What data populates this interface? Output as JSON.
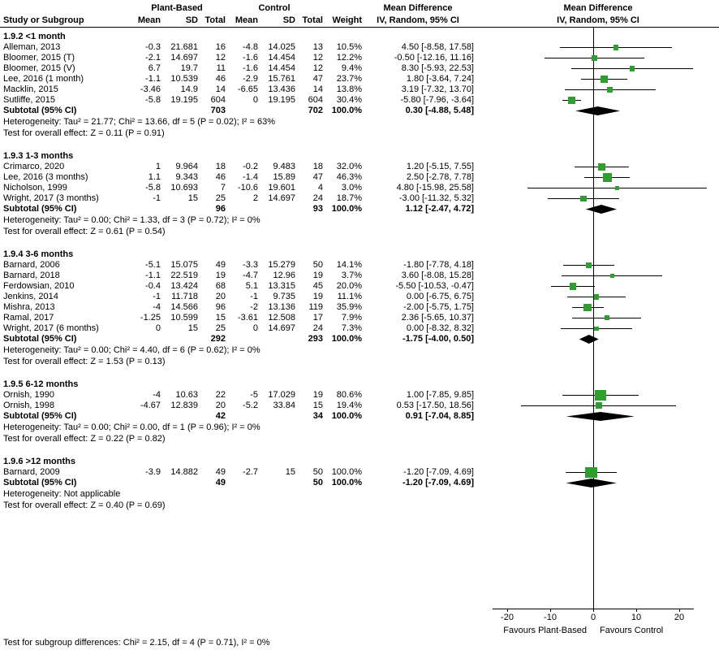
{
  "header": {
    "group_plant": "Plant-Based",
    "group_control": "Control",
    "md_text_col": "Mean Difference",
    "md_plot_col": "Mean Difference",
    "study": "Study or Subgroup",
    "mean": "Mean",
    "sd": "SD",
    "total": "Total",
    "weight": "Weight",
    "ci": "IV, Random, 95% CI",
    "ci_plot": "IV, Random, 95% CI"
  },
  "chart_data": {
    "type": "forest",
    "effect_measure": "Mean Difference, IV, Random, 95% CI",
    "axis": {
      "ticks": [
        -20,
        -10,
        0,
        10,
        20
      ],
      "xlim": [
        -28.5,
        29.2
      ],
      "label_left": "Favours Plant-Based",
      "label_right": "Favours Control"
    },
    "colors": {
      "square": "#2E9E2E",
      "diamond": "#000000",
      "line": "#000000"
    },
    "subgroups": [
      {
        "title": "1.9.2 <1 month",
        "studies": [
          {
            "name": "Alleman, 2013",
            "mean1": "-0.3",
            "sd1": "21.681",
            "n1": "16",
            "mean2": "-4.8",
            "sd2": "14.025",
            "n2": "13",
            "weight": "10.5%",
            "weight_val": 10.5,
            "ci_text": "4.50 [-8.58, 17.58]",
            "md": 4.5,
            "lo": -8.58,
            "hi": 17.58
          },
          {
            "name": "Bloomer, 2015 (T)",
            "mean1": "-2.1",
            "sd1": "14.697",
            "n1": "12",
            "mean2": "-1.6",
            "sd2": "14.454",
            "n2": "12",
            "weight": "12.2%",
            "weight_val": 12.2,
            "ci_text": "-0.50 [-12.16, 11.16]",
            "md": -0.5,
            "lo": -12.16,
            "hi": 11.16
          },
          {
            "name": "Bloomer, 2015 (V)",
            "mean1": "6.7",
            "sd1": "19.7",
            "n1": "11",
            "mean2": "-1.6",
            "sd2": "14.454",
            "n2": "12",
            "weight": "9.4%",
            "weight_val": 9.4,
            "ci_text": "8.30 [-5.93, 22.53]",
            "md": 8.3,
            "lo": -5.93,
            "hi": 22.53
          },
          {
            "name": "Lee, 2016 (1 month)",
            "mean1": "-1.1",
            "sd1": "10.539",
            "n1": "46",
            "mean2": "-2.9",
            "sd2": "15.761",
            "n2": "47",
            "weight": "23.7%",
            "weight_val": 23.7,
            "ci_text": "1.80 [-3.64, 7.24]",
            "md": 1.8,
            "lo": -3.64,
            "hi": 7.24
          },
          {
            "name": "Macklin, 2015",
            "mean1": "-3.46",
            "sd1": "14.9",
            "n1": "14",
            "mean2": "-6.65",
            "sd2": "13.436",
            "n2": "14",
            "weight": "13.8%",
            "weight_val": 13.8,
            "ci_text": "3.19 [-7.32, 13.70]",
            "md": 3.19,
            "lo": -7.32,
            "hi": 13.7
          },
          {
            "name": "Sutliffe, 2015",
            "mean1": "-5.8",
            "sd1": "19.195",
            "n1": "604",
            "mean2": "0",
            "sd2": "19.195",
            "n2": "604",
            "weight": "30.4%",
            "weight_val": 30.4,
            "ci_text": "-5.80 [-7.96, -3.64]",
            "md": -5.8,
            "lo": -7.96,
            "hi": -3.64
          }
        ],
        "subtotal": {
          "label": "Subtotal (95% CI)",
          "n1": "703",
          "n2": "702",
          "weight": "100.0%",
          "ci_text": "0.30 [-4.88, 5.48]",
          "md": 0.3,
          "lo": -4.88,
          "hi": 5.48
        },
        "heterogeneity": "Heterogeneity: Tau² = 21.77; Chi² = 13.66, df = 5 (P = 0.02); I² = 63%",
        "overall_effect": "Test for overall effect: Z = 0.11 (P = 0.91)"
      },
      {
        "title": "1.9.3 1-3 months",
        "studies": [
          {
            "name": "Crimarco, 2020",
            "mean1": "1",
            "sd1": "9.964",
            "n1": "18",
            "mean2": "-0.2",
            "sd2": "9.483",
            "n2": "18",
            "weight": "32.0%",
            "weight_val": 32,
            "ci_text": "1.20 [-5.15, 7.55]",
            "md": 1.2,
            "lo": -5.15,
            "hi": 7.55
          },
          {
            "name": "Lee, 2016 (3 months)",
            "mean1": "1.1",
            "sd1": "9.343",
            "n1": "46",
            "mean2": "-1.4",
            "sd2": "15.89",
            "n2": "47",
            "weight": "46.3%",
            "weight_val": 46.3,
            "ci_text": "2.50 [-2.78, 7.78]",
            "md": 2.5,
            "lo": -2.78,
            "hi": 7.78
          },
          {
            "name": "Nicholson, 1999",
            "mean1": "-5.8",
            "sd1": "10.693",
            "n1": "7",
            "mean2": "-10.6",
            "sd2": "19.601",
            "n2": "4",
            "weight": "3.0%",
            "weight_val": 3,
            "ci_text": "4.80 [-15.98, 25.58]",
            "md": 4.8,
            "lo": -15.98,
            "hi": 25.58
          },
          {
            "name": "Wright, 2017 (3 months)",
            "mean1": "-1",
            "sd1": "15",
            "n1": "25",
            "mean2": "2",
            "sd2": "14.697",
            "n2": "24",
            "weight": "18.7%",
            "weight_val": 18.7,
            "ci_text": "-3.00 [-11.32, 5.32]",
            "md": -3,
            "lo": -11.32,
            "hi": 5.32
          }
        ],
        "subtotal": {
          "label": "Subtotal (95% CI)",
          "n1": "96",
          "n2": "93",
          "weight": "100.0%",
          "ci_text": "1.12 [-2.47, 4.72]",
          "md": 1.12,
          "lo": -2.47,
          "hi": 4.72
        },
        "heterogeneity": "Heterogeneity: Tau² = 0.00; Chi² = 1.33, df = 3 (P = 0.72); I² = 0%",
        "overall_effect": "Test for overall effect: Z = 0.61 (P = 0.54)"
      },
      {
        "title": "1.9.4 3-6 months",
        "studies": [
          {
            "name": "Barnard, 2006",
            "mean1": "-5.1",
            "sd1": "15.075",
            "n1": "49",
            "mean2": "-3.3",
            "sd2": "15.279",
            "n2": "50",
            "weight": "14.1%",
            "weight_val": 14.1,
            "ci_text": "-1.80 [-7.78, 4.18]",
            "md": -1.8,
            "lo": -7.78,
            "hi": 4.18
          },
          {
            "name": "Barnard, 2018",
            "mean1": "-1.1",
            "sd1": "22.519",
            "n1": "19",
            "mean2": "-4.7",
            "sd2": "12.96",
            "n2": "19",
            "weight": "3.7%",
            "weight_val": 3.7,
            "ci_text": "3.60 [-8.08, 15.28]",
            "md": 3.6,
            "lo": -8.08,
            "hi": 15.28
          },
          {
            "name": "Ferdowsian, 2010",
            "mean1": "-0.4",
            "sd1": "13.424",
            "n1": "68",
            "mean2": "5.1",
            "sd2": "13.315",
            "n2": "45",
            "weight": "20.0%",
            "weight_val": 20,
            "ci_text": "-5.50 [-10.53, -0.47]",
            "md": -5.5,
            "lo": -10.53,
            "hi": -0.47
          },
          {
            "name": "Jenkins, 2014",
            "mean1": "-1",
            "sd1": "11.718",
            "n1": "20",
            "mean2": "-1",
            "sd2": "9.735",
            "n2": "19",
            "weight": "11.1%",
            "weight_val": 11.1,
            "ci_text": "0.00 [-6.75, 6.75]",
            "md": 0,
            "lo": -6.75,
            "hi": 6.75
          },
          {
            "name": "Mishra, 2013",
            "mean1": "-4",
            "sd1": "14.566",
            "n1": "96",
            "mean2": "-2",
            "sd2": "13.136",
            "n2": "119",
            "weight": "35.9%",
            "weight_val": 35.9,
            "ci_text": "-2.00 [-5.75, 1.75]",
            "md": -2,
            "lo": -5.75,
            "hi": 1.75
          },
          {
            "name": "Ramal, 2017",
            "mean1": "-1.25",
            "sd1": "10.599",
            "n1": "15",
            "mean2": "-3.61",
            "sd2": "12.508",
            "n2": "17",
            "weight": "7.9%",
            "weight_val": 7.9,
            "ci_text": "2.36 [-5.65, 10.37]",
            "md": 2.36,
            "lo": -5.65,
            "hi": 10.37
          },
          {
            "name": "Wright, 2017 (6 months)",
            "mean1": "0",
            "sd1": "15",
            "n1": "25",
            "mean2": "0",
            "sd2": "14.697",
            "n2": "24",
            "weight": "7.3%",
            "weight_val": 7.3,
            "ci_text": "0.00 [-8.32, 8.32]",
            "md": 0,
            "lo": -8.32,
            "hi": 8.32
          }
        ],
        "subtotal": {
          "label": "Subtotal (95% CI)",
          "n1": "292",
          "n2": "293",
          "weight": "100.0%",
          "ci_text": "-1.75 [-4.00, 0.50]",
          "md": -1.75,
          "lo": -4,
          "hi": 0.5
        },
        "heterogeneity": "Heterogeneity: Tau² = 0.00; Chi² = 4.40, df = 6 (P = 0.62); I² = 0%",
        "overall_effect": "Test for overall effect: Z = 1.53 (P = 0.13)"
      },
      {
        "title": "1.9.5 6-12 months",
        "studies": [
          {
            "name": "Ornish, 1990",
            "mean1": "-4",
            "sd1": "10.63",
            "n1": "22",
            "mean2": "-5",
            "sd2": "17.029",
            "n2": "19",
            "weight": "80.6%",
            "weight_val": 80.6,
            "ci_text": "1.00 [-7.85, 9.85]",
            "md": 1,
            "lo": -7.85,
            "hi": 9.85
          },
          {
            "name": "Ornish, 1998",
            "mean1": "-4.67",
            "sd1": "12.839",
            "n1": "20",
            "mean2": "-5.2",
            "sd2": "33.84",
            "n2": "15",
            "weight": "19.4%",
            "weight_val": 19.4,
            "ci_text": "0.53 [-17.50, 18.56]",
            "md": 0.53,
            "lo": -17.5,
            "hi": 18.56
          }
        ],
        "subtotal": {
          "label": "Subtotal (95% CI)",
          "n1": "42",
          "n2": "34",
          "weight": "100.0%",
          "ci_text": "0.91 [-7.04, 8.85]",
          "md": 0.91,
          "lo": -7.04,
          "hi": 8.85
        },
        "heterogeneity": "Heterogeneity: Tau² = 0.00; Chi² = 0.00, df = 1 (P = 0.96); I² = 0%",
        "overall_effect": "Test for overall effect: Z = 0.22 (P = 0.82)"
      },
      {
        "title": "1.9.6 >12 months",
        "studies": [
          {
            "name": "Barnard, 2009",
            "mean1": "-3.9",
            "sd1": "14.882",
            "n1": "49",
            "mean2": "-2.7",
            "sd2": "15",
            "n2": "50",
            "weight": "100.0%",
            "weight_val": 100,
            "ci_text": "-1.20 [-7.09, 4.69]",
            "md": -1.2,
            "lo": -7.09,
            "hi": 4.69
          }
        ],
        "subtotal": {
          "label": "Subtotal (95% CI)",
          "n1": "49",
          "n2": "50",
          "weight": "100.0%",
          "ci_text": "-1.20 [-7.09, 4.69]",
          "md": -1.2,
          "lo": -7.09,
          "hi": 4.69
        },
        "heterogeneity": "Heterogeneity: Not applicable",
        "overall_effect": "Test for overall effect: Z = 0.40 (P = 0.69)"
      }
    ],
    "footer": "Test for subgroup differences: Chi² = 2.15, df = 4 (P = 0.71), I² = 0%"
  }
}
